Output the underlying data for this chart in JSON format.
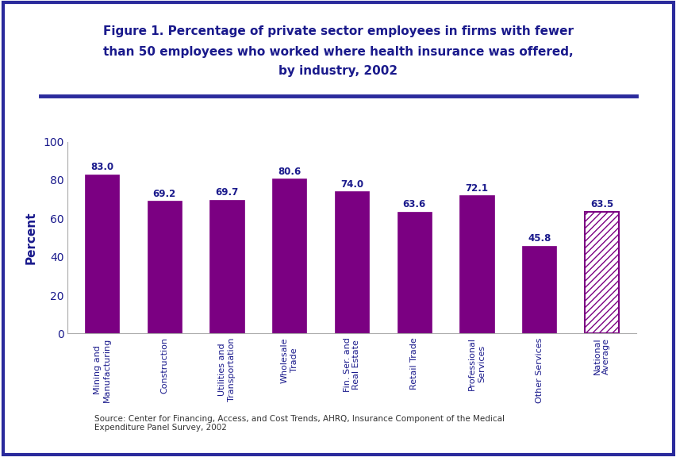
{
  "title_line1": "Figure 1. Percentage of private sector employees in firms with fewer",
  "title_line2": "than 50 employees who worked where health insurance was offered,",
  "title_line3": "by industry, 2002",
  "categories": [
    "Mining and\nManufacturing",
    "Construction",
    "Utilities and\nTransportation",
    "Wholesale\nTrade",
    "Fin. Ser. and\nReal Estate",
    "Retail Trade",
    "Professional\nServices",
    "Other Services",
    "National\nAverage"
  ],
  "values": [
    83.0,
    69.2,
    69.7,
    80.6,
    74.0,
    63.6,
    72.1,
    45.8,
    63.5
  ],
  "bar_color": "#7B0082",
  "ylabel": "Percent",
  "ylim": [
    0,
    100
  ],
  "yticks": [
    0,
    20,
    40,
    60,
    80,
    100
  ],
  "title_color": "#1a1a8c",
  "axis_label_color": "#1a1a8c",
  "tick_label_color": "#1a1a8c",
  "value_label_color": "#1a1a8c",
  "bg_color": "#ffffff",
  "outer_border_color": "#2a2a9c",
  "separator_color": "#2a2a9c",
  "source_text": "Source: Center for Financing, Access, and Cost Trends, AHRQ, Insurance Component of the Medical\nExpenditure Panel Survey, 2002",
  "hatch_pattern": "////"
}
